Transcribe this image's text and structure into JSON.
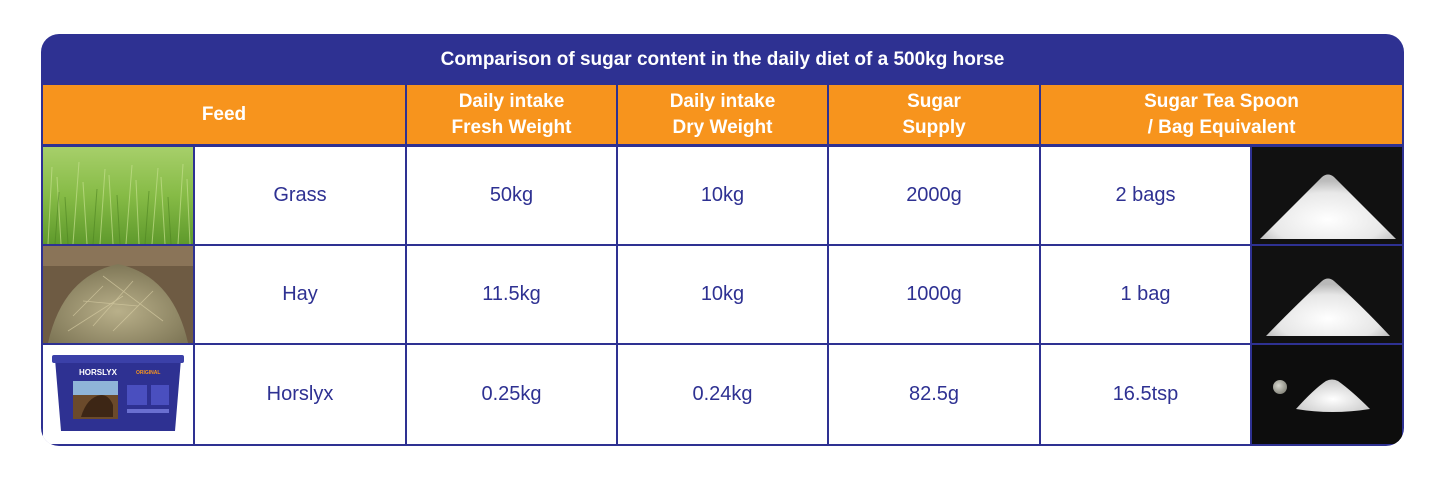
{
  "title": "Comparison of sugar content in the daily diet of a 500kg horse",
  "headers": {
    "feed": "Feed",
    "fresh": [
      "Daily intake",
      "Fresh Weight"
    ],
    "dry": [
      "Daily intake",
      "Dry Weight"
    ],
    "sugar": [
      "Sugar",
      "Supply"
    ],
    "equiv": [
      "Sugar Tea Spoon",
      "/ Bag Equivalent"
    ]
  },
  "rows": [
    {
      "feed": "Grass",
      "fresh": "50kg",
      "dry": "10kg",
      "sugar": "2000g",
      "equiv": "2 bags"
    },
    {
      "feed": "Hay",
      "fresh": "11.5kg",
      "dry": "10kg",
      "sugar": "1000g",
      "equiv": "1 bag"
    },
    {
      "feed": "Horslyx",
      "fresh": "0.25kg",
      "dry": "0.24kg",
      "sugar": "82.5g",
      "equiv": "16.5tsp"
    }
  ],
  "product_label": {
    "brand": "HORSLYX",
    "variant": "ORIGINAL"
  },
  "colors": {
    "navy": "#2e3192",
    "orange": "#f7941d",
    "white": "#ffffff"
  }
}
